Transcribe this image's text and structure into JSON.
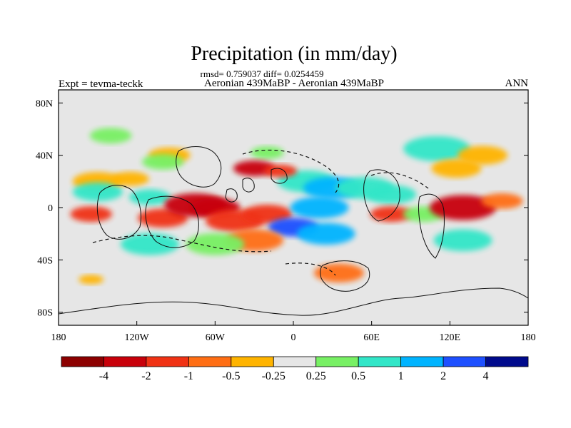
{
  "chart_data": {
    "type": "heatmap",
    "title": "Precipitation (in mm/day)",
    "stats_line": "rmsd= 0.759037 diff= 0.0254459",
    "subtitle": "Aeronian 439MaBP - Aeronian 439MaBP",
    "left_label": "Expt = tevma-teckk",
    "right_label": "ANN",
    "xlim": [
      -180,
      180
    ],
    "ylim": [
      -90,
      90
    ],
    "x_ticks": [
      {
        "value": -180,
        "label": "180"
      },
      {
        "value": -120,
        "label": "120W"
      },
      {
        "value": -60,
        "label": "60W"
      },
      {
        "value": 0,
        "label": "0"
      },
      {
        "value": 60,
        "label": "60E"
      },
      {
        "value": 120,
        "label": "120E"
      },
      {
        "value": 180,
        "label": "180"
      }
    ],
    "y_ticks": [
      {
        "value": 80,
        "label": "80N"
      },
      {
        "value": 40,
        "label": "40N"
      },
      {
        "value": 0,
        "label": "0"
      },
      {
        "value": -40,
        "label": "40S"
      },
      {
        "value": -80,
        "label": "80S"
      }
    ],
    "colorbar": {
      "colors": [
        "#8c0000",
        "#c8000a",
        "#f03214",
        "#ff6e14",
        "#ffb400",
        "#e6e6e6",
        "#78f064",
        "#32e6c8",
        "#00b4ff",
        "#1e50ff",
        "#000a8c"
      ],
      "labels": [
        "-4",
        "-2",
        "-1",
        "-0.5",
        "-0.25",
        "0.25",
        "0.5",
        "1",
        "2",
        "4"
      ]
    },
    "fields": [
      {
        "lon": 110,
        "lat": 45,
        "value": 0.6,
        "r": 16
      },
      {
        "lon": 145,
        "lat": 40,
        "value": -0.3,
        "r": 12
      },
      {
        "lon": -20,
        "lat": 42,
        "value": 0.5,
        "r": 8
      },
      {
        "lon": -95,
        "lat": 40,
        "value": -0.4,
        "r": 10
      },
      {
        "lon": -100,
        "lat": 35,
        "value": 0.5,
        "r": 10
      },
      {
        "lon": -150,
        "lat": 20,
        "value": -0.4,
        "r": 12
      },
      {
        "lon": -155,
        "lat": -5,
        "value": -1.0,
        "r": 10
      },
      {
        "lon": -150,
        "lat": 12,
        "value": 0.8,
        "r": 12
      },
      {
        "lon": -125,
        "lat": 22,
        "value": -0.3,
        "r": 9
      },
      {
        "lon": -110,
        "lat": 8,
        "value": 0.8,
        "r": 10
      },
      {
        "lon": -100,
        "lat": -8,
        "value": -1.0,
        "r": 12
      },
      {
        "lon": -75,
        "lat": 2,
        "value": -2.5,
        "r": 15
      },
      {
        "lon": -60,
        "lat": 0,
        "value": -3.5,
        "r": 12
      },
      {
        "lon": -45,
        "lat": -10,
        "value": -1.2,
        "r": 14
      },
      {
        "lon": -20,
        "lat": -5,
        "value": -1.5,
        "r": 12
      },
      {
        "lon": 10,
        "lat": 20,
        "value": 0.8,
        "r": 14
      },
      {
        "lon": 30,
        "lat": 15,
        "value": 1.5,
        "r": 14
      },
      {
        "lon": 55,
        "lat": 15,
        "value": 1.0,
        "r": 14
      },
      {
        "lon": 75,
        "lat": 10,
        "value": 0.6,
        "r": 12
      },
      {
        "lon": -30,
        "lat": 30,
        "value": -2.0,
        "r": 10
      },
      {
        "lon": -10,
        "lat": 28,
        "value": -1.0,
        "r": 8
      },
      {
        "lon": 20,
        "lat": 0,
        "value": 1.2,
        "r": 14
      },
      {
        "lon": 0,
        "lat": -15,
        "value": 4.0,
        "r": 12
      },
      {
        "lon": 25,
        "lat": -20,
        "value": 1.8,
        "r": 14
      },
      {
        "lon": -30,
        "lat": -25,
        "value": -0.8,
        "r": 14
      },
      {
        "lon": -60,
        "lat": -28,
        "value": 0.5,
        "r": 14
      },
      {
        "lon": -110,
        "lat": -28,
        "value": 0.7,
        "r": 14
      },
      {
        "lon": 35,
        "lat": -50,
        "value": -0.8,
        "r": 12
      },
      {
        "lon": 75,
        "lat": -5,
        "value": -1.5,
        "r": 10
      },
      {
        "lon": 100,
        "lat": -5,
        "value": 0.5,
        "r": 10
      },
      {
        "lon": 130,
        "lat": 0,
        "value": -3.0,
        "r": 16
      },
      {
        "lon": 160,
        "lat": 5,
        "value": -0.6,
        "r": 10
      },
      {
        "lon": 130,
        "lat": -25,
        "value": 0.7,
        "r": 14
      },
      {
        "lon": 125,
        "lat": 30,
        "value": -0.3,
        "r": 12
      },
      {
        "lon": -140,
        "lat": 55,
        "value": 0.5,
        "r": 10
      },
      {
        "lon": -155,
        "lat": -55,
        "value": -0.3,
        "r": 6
      }
    ]
  }
}
